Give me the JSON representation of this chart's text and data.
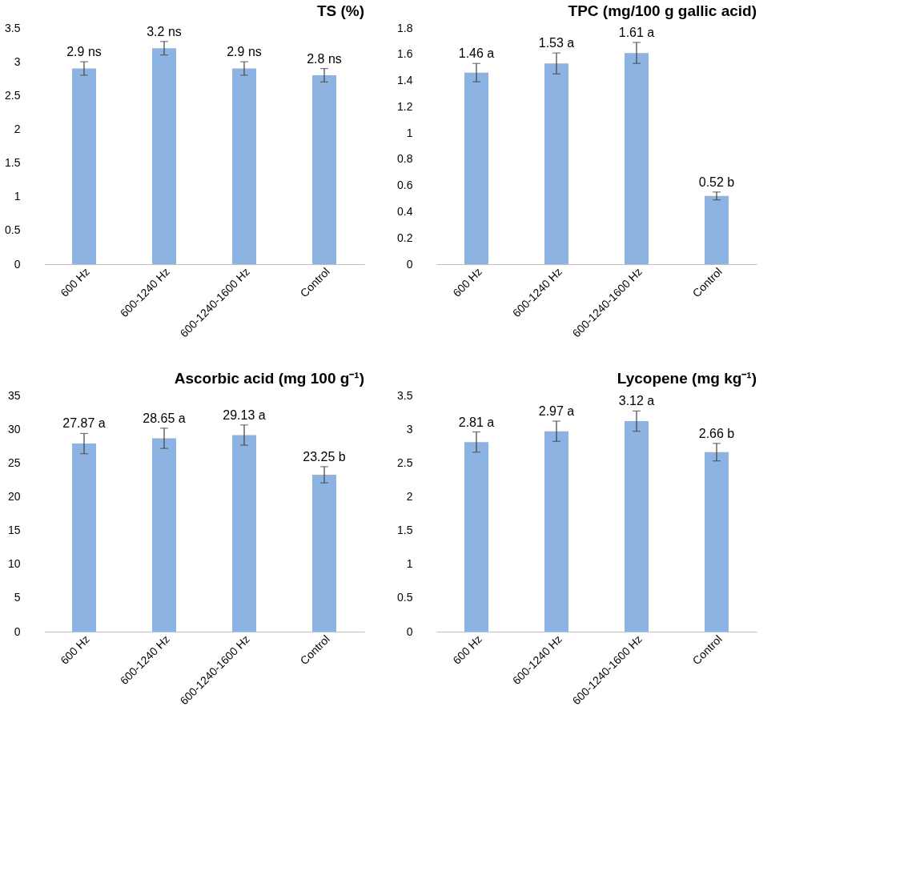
{
  "chart_data": [
    {
      "type": "bar",
      "title": "TS (%)",
      "categories": [
        "600 Hz",
        "600-1240 Hz",
        "600-1240-1600 Hz",
        "Control"
      ],
      "values": [
        2.9,
        3.2,
        2.9,
        2.8
      ],
      "errors": [
        0.1,
        0.1,
        0.1,
        0.1
      ],
      "value_labels": [
        "2.9 ns",
        "3.2 ns",
        "2.9 ns",
        "2.8 ns"
      ],
      "color": "#8db3e2",
      "ylim": [
        0,
        3.5
      ],
      "yticks": [
        0,
        0.5,
        1,
        1.5,
        2,
        2.5,
        3,
        3.5
      ],
      "grid": false
    },
    {
      "type": "bar",
      "title": "TPC (mg/100 g gallic acid)",
      "categories": [
        "600 Hz",
        "600-1240 Hz",
        "600-1240-1600 Hz",
        "Control"
      ],
      "values": [
        1.46,
        1.53,
        1.61,
        0.52
      ],
      "errors": [
        0.07,
        0.08,
        0.08,
        0.03
      ],
      "value_labels": [
        "1.46 a",
        "1.53 a",
        "1.61 a",
        "0.52 b"
      ],
      "color": "#8db3e2",
      "ylim": [
        0,
        1.8
      ],
      "yticks": [
        0,
        0.2,
        0.4,
        0.6,
        0.8,
        1,
        1.2,
        1.4,
        1.6,
        1.8
      ],
      "grid": false
    },
    {
      "type": "bar",
      "title": "Ascorbic acid (mg 100 g⁻¹)",
      "categories": [
        "600 Hz",
        "600-1240 Hz",
        "600-1240-1600 Hz",
        "Control"
      ],
      "values": [
        27.87,
        28.65,
        29.13,
        23.25
      ],
      "errors": [
        1.5,
        1.5,
        1.5,
        1.2
      ],
      "value_labels": [
        "27.87 a",
        "28.65 a",
        "29.13 a",
        "23.25 b"
      ],
      "color": "#8db3e2",
      "ylim": [
        0,
        35
      ],
      "yticks": [
        0,
        5,
        10,
        15,
        20,
        25,
        30,
        35
      ],
      "grid": false
    },
    {
      "type": "bar",
      "title": "Lycopene (mg kg⁻¹)",
      "categories": [
        "600 Hz",
        "600-1240 Hz",
        "600-1240-1600 Hz",
        "Control"
      ],
      "values": [
        2.81,
        2.97,
        3.12,
        2.66
      ],
      "errors": [
        0.15,
        0.15,
        0.15,
        0.13
      ],
      "value_labels": [
        "2.81 a",
        "2.97 a",
        "3.12 a",
        "2.66 b"
      ],
      "color": "#8db3e2",
      "ylim": [
        0,
        3.5
      ],
      "yticks": [
        0,
        0.5,
        1,
        1.5,
        2,
        2.5,
        3,
        3.5
      ],
      "grid": false
    }
  ]
}
